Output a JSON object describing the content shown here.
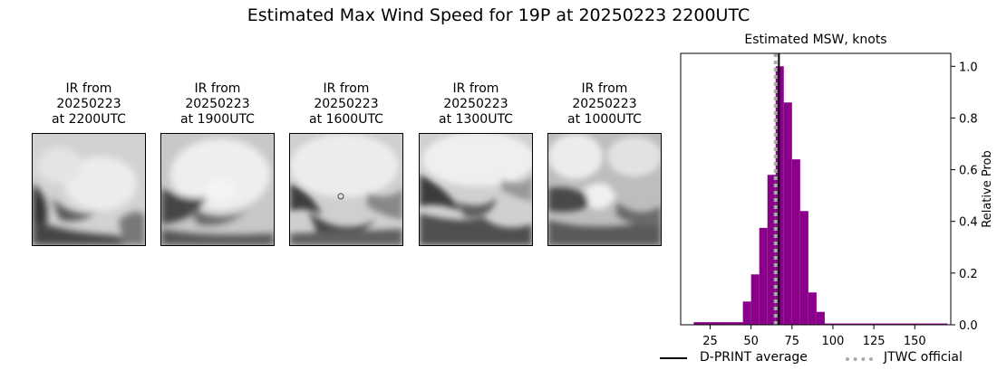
{
  "suptitle": "Estimated Max Wind Speed for 19P at 20250223 2200UTC",
  "ir_panels": [
    {
      "line1": "IR from",
      "line2": "20250223",
      "line3": "at 2200UTC"
    },
    {
      "line1": "IR from",
      "line2": "20250223",
      "line3": "at 1900UTC"
    },
    {
      "line1": "IR from",
      "line2": "20250223",
      "line3": "at 1600UTC"
    },
    {
      "line1": "IR from",
      "line2": "20250223",
      "line3": "at 1300UTC"
    },
    {
      "line1": "IR from",
      "line2": "20250223",
      "line3": "at 1000UTC"
    }
  ],
  "chart_data": {
    "type": "bar",
    "title": "Estimated MSW, knots",
    "xlabel": "",
    "ylabel": "Relative Prob",
    "xlim": [
      7,
      172
    ],
    "ylim": [
      0,
      1.05
    ],
    "xticks": [
      25,
      50,
      75,
      100,
      125,
      150
    ],
    "yticks": [
      0.0,
      0.2,
      0.4,
      0.6,
      0.8,
      1.0
    ],
    "bin_width": 5,
    "bin_starts": [
      15,
      20,
      25,
      30,
      35,
      40,
      45,
      50,
      55,
      60,
      65,
      70,
      75,
      80,
      85,
      90,
      95,
      100,
      105,
      110,
      115,
      120,
      125,
      130,
      135,
      140,
      145,
      150,
      155,
      160,
      165
    ],
    "values": [
      0.01,
      0.01,
      0.01,
      0.01,
      0.01,
      0.01,
      0.09,
      0.195,
      0.375,
      0.58,
      1.0,
      0.86,
      0.64,
      0.44,
      0.125,
      0.05,
      0.005,
      0.005,
      0.005,
      0.005,
      0.005,
      0.005,
      0.005,
      0.005,
      0.005,
      0.005,
      0.005,
      0.005,
      0.005,
      0.005,
      0.005
    ],
    "bar_color": "#8b008b",
    "dprint_average": 67,
    "jtwc_official": 65,
    "legend": [
      {
        "label": "D-PRINT average",
        "color": "#000000",
        "style": "solid"
      },
      {
        "label": "JTWC official",
        "color": "#aaaaaa",
        "style": "dotted"
      }
    ],
    "legend_position": "bottom-right"
  }
}
